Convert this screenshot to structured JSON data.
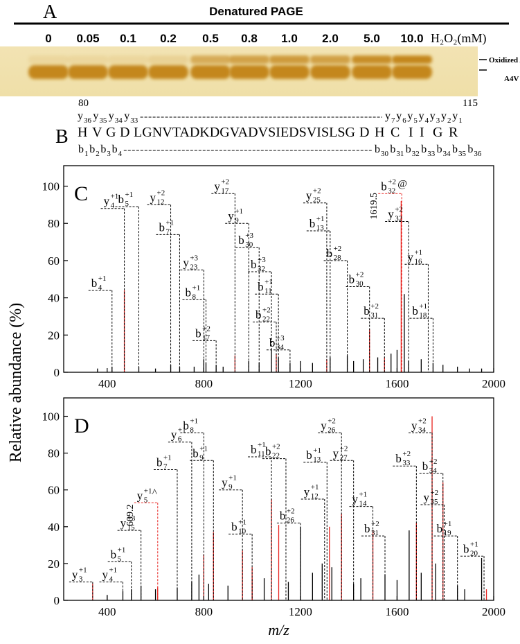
{
  "gel": {
    "label": "A",
    "title": "Denatured PAGE",
    "lanes": [
      "0",
      "0.05",
      "0.1",
      "0.2",
      "0.5",
      "0.8",
      "1.0",
      "2.0",
      "5.0",
      "10.0"
    ],
    "unit": "H₂O₂(mM)",
    "bands": [
      "Oxidized A4V",
      "A4V"
    ]
  },
  "sequence": {
    "label": "B",
    "start": 80,
    "end": 115,
    "residues": [
      "H",
      "V",
      "G",
      "D",
      "LGNVTADKDGVADVSIEDSVISLSG",
      "D",
      "H",
      {
        "text": "C",
        "color": "#e8231f"
      },
      "I",
      "I",
      "G",
      "R"
    ],
    "y_ions": {
      "ion": "y",
      "left": [
        "36",
        "35",
        "34",
        "33"
      ],
      "right": [
        "7",
        "6",
        {
          "index": "5",
          "color": "#e8231f"
        },
        "4",
        "3",
        "2",
        "1"
      ]
    },
    "b_ions": {
      "ion": "b",
      "left": [
        "1",
        "2",
        "3",
        "4"
      ],
      "right": [
        "30",
        "31",
        {
          "index": "32",
          "color": "#e8231f"
        },
        "33",
        "34",
        "35",
        "36"
      ]
    }
  },
  "chart_data": [
    {
      "type": "spectrum",
      "label": "C",
      "ylabel": "Relative abundance (%)",
      "xlim": [
        220,
        2000
      ],
      "ylim": [
        0,
        111
      ],
      "xticks": [
        400,
        800,
        1200,
        1600,
        2000
      ],
      "yticks": [
        0,
        20,
        40,
        60,
        80,
        100
      ],
      "series": [
        {
          "color": "#e8231f",
          "x": [
            471,
            929,
            1100,
            1309,
            1486,
            1548,
            1617
          ],
          "values": [
            44,
            9,
            10,
            7,
            23,
            8,
            92
          ]
        },
        {
          "color": "#000000",
          "x": [
            360,
            420,
            531,
            600,
            663,
            700,
            760,
            800,
            809,
            851,
            880,
            986,
            1029,
            1080,
            1109,
            1157,
            1200,
            1250,
            1323,
            1394,
            1420,
            1460,
            1520,
            1575,
            1600,
            1630,
            1648,
            1700,
            1749,
            1790,
            1850,
            1900,
            1950
          ],
          "values": [
            2,
            3,
            3,
            2,
            4,
            3,
            3,
            7,
            5,
            4,
            3,
            6,
            5,
            12,
            8,
            5,
            6,
            5,
            8,
            9,
            6,
            7,
            8,
            10,
            12,
            42,
            6,
            7,
            5,
            4,
            3,
            2,
            2
          ]
        }
      ],
      "annotations": [
        {
          "ion": "b",
          "index": "4",
          "charge": "+1",
          "x": 420,
          "y": 44
        },
        {
          "ion": "y",
          "index": "4",
          "charge": "+1",
          "x": 471,
          "y": 88
        },
        {
          "ion": "b",
          "index": "5",
          "charge": "+1",
          "x": 531,
          "y": 89
        },
        {
          "ion": "y",
          "index": "12",
          "charge": "+2",
          "x": 663,
          "y": 90
        },
        {
          "ion": "b",
          "index": "7",
          "charge": "+1",
          "x": 700,
          "y": 74
        },
        {
          "ion": "y",
          "index": "23",
          "charge": "+3",
          "x": 800,
          "y": 55
        },
        {
          "ion": "b",
          "index": "8",
          "charge": "+1",
          "x": 809,
          "y": 39
        },
        {
          "ion": "b",
          "index": "17",
          "charge": "+2",
          "x": 851,
          "y": 17
        },
        {
          "ion": "y",
          "index": "17",
          "charge": "+2",
          "x": 929,
          "y": 96
        },
        {
          "ion": "y",
          "index": "9",
          "charge": "+1",
          "x": 986,
          "y": 80
        },
        {
          "ion": "b",
          "index": "30",
          "charge": "+3",
          "x": 1029,
          "y": 67
        },
        {
          "ion": "b",
          "index": "32",
          "charge": "+3",
          "x": 1080,
          "y": 54
        },
        {
          "ion": "b",
          "index": "11",
          "charge": "+1",
          "x": 1109,
          "y": 42
        },
        {
          "ion": "b",
          "index": "22",
          "charge": "+2",
          "x": 1100,
          "y": 27
        },
        {
          "ion": "b",
          "index": "34",
          "charge": "+3",
          "x": 1157,
          "y": 12
        },
        {
          "ion": "y",
          "index": "25",
          "charge": "+2",
          "x": 1309,
          "y": 91
        },
        {
          "ion": "b",
          "index": "13",
          "charge": "+1",
          "x": 1323,
          "y": 76
        },
        {
          "ion": "b",
          "index": "28",
          "charge": "+2",
          "x": 1394,
          "y": 60
        },
        {
          "ion": "b",
          "index": "30",
          "charge": "+2",
          "x": 1486,
          "y": 46
        },
        {
          "ion": "b",
          "index": "31",
          "charge": "+2",
          "x": 1548,
          "y": 29
        },
        {
          "ion": "b",
          "index": "32",
          "charge": "+2",
          "suffix": "@",
          "x": 1619.5,
          "y": 96,
          "color": "#e8231f",
          "print_x": true
        },
        {
          "ion": "y",
          "index": "32",
          "charge": "+2",
          "x": 1648,
          "y": 81
        },
        {
          "ion": "y",
          "index": "16",
          "charge": "+1",
          "x": 1729,
          "y": 58
        },
        {
          "ion": "b",
          "index": "18",
          "charge": "+1",
          "x": 1749,
          "y": 29
        }
      ]
    },
    {
      "type": "spectrum",
      "label": "D",
      "xlabel": "m/z",
      "xlim": [
        220,
        2000
      ],
      "ylim": [
        0,
        110
      ],
      "xticks": [
        400,
        800,
        1200,
        1600,
        2000
      ],
      "yticks": [
        0,
        20,
        40,
        60,
        80,
        100
      ],
      "series": [
        {
          "color": "#e8231f",
          "x": [
            340,
            609,
            800,
            840,
            960,
            1000,
            1080,
            1110,
            1320,
            1370,
            1500,
            1680,
            1745,
            1790,
            1970
          ],
          "values": [
            9,
            7,
            25,
            37,
            27,
            18,
            55,
            41,
            40,
            47,
            38,
            42,
            100,
            64,
            6
          ]
        },
        {
          "color": "#000000",
          "x": [
            400,
            465,
            500,
            540,
            600,
            690,
            750,
            780,
            820,
            900,
            1000,
            1050,
            1150,
            1200,
            1250,
            1290,
            1330,
            1420,
            1450,
            1550,
            1600,
            1650,
            1700,
            1760,
            1850,
            1880,
            1950
          ],
          "values": [
            3,
            5,
            6,
            8,
            6,
            7,
            10,
            14,
            9,
            8,
            12,
            12,
            10,
            40,
            15,
            20,
            18,
            9,
            12,
            14,
            11,
            38,
            15,
            20,
            8,
            6,
            23
          ]
        }
      ],
      "annotations": [
        {
          "ion": "y",
          "index": "3",
          "charge": "+1",
          "x": 340,
          "y": 10
        },
        {
          "ion": "y",
          "index": "4",
          "charge": "+1",
          "x": 465,
          "y": 10
        },
        {
          "ion": "b",
          "index": "5",
          "charge": "+1",
          "x": 500,
          "y": 21
        },
        {
          "ion": "y",
          "index": "15",
          "charge": "+3",
          "x": 540,
          "y": 38
        },
        {
          "ion": "y",
          "index": "5",
          "charge": "+1",
          "suffix": "^",
          "x": 609.2,
          "y": 53,
          "color": "#e8231f",
          "print_x": true
        },
        {
          "ion": "b",
          "index": "7",
          "charge": "+1",
          "x": 690,
          "y": 71
        },
        {
          "ion": "y",
          "index": "6",
          "charge": "+1",
          "x": 750,
          "y": 86
        },
        {
          "ion": "b",
          "index": "8",
          "charge": "+1",
          "x": 800,
          "y": 91
        },
        {
          "ion": "b",
          "index": "9",
          "charge": "+1",
          "x": 840,
          "y": 76
        },
        {
          "ion": "y",
          "index": "9",
          "charge": "+1",
          "x": 960,
          "y": 60
        },
        {
          "ion": "b",
          "index": "10",
          "charge": "+1",
          "x": 1000,
          "y": 36
        },
        {
          "ion": "b",
          "index": "11",
          "charge": "+1",
          "x": 1080,
          "y": 78
        },
        {
          "ion": "b",
          "index": "22",
          "charge": "+2",
          "x": 1140,
          "y": 77
        },
        {
          "ion": "b",
          "index": "26",
          "charge": "+2",
          "x": 1200,
          "y": 42
        },
        {
          "ion": "y",
          "index": "12",
          "charge": "+1",
          "x": 1300,
          "y": 55
        },
        {
          "ion": "b",
          "index": "13",
          "charge": "+1",
          "x": 1310,
          "y": 75
        },
        {
          "ion": "y",
          "index": "26",
          "charge": "+2",
          "x": 1370,
          "y": 91
        },
        {
          "ion": "y",
          "index": "27",
          "charge": "+2",
          "x": 1420,
          "y": 76
        },
        {
          "ion": "y",
          "index": "14",
          "charge": "+1",
          "x": 1500,
          "y": 51
        },
        {
          "ion": "b",
          "index": "31",
          "charge": "+2",
          "x": 1550,
          "y": 35
        },
        {
          "ion": "b",
          "index": "33",
          "charge": "+2",
          "x": 1680,
          "y": 73
        },
        {
          "ion": "y",
          "index": "34",
          "charge": "+2",
          "x": 1745,
          "y": 91
        },
        {
          "ion": "b",
          "index": "34",
          "charge": "+2",
          "x": 1790,
          "y": 69
        },
        {
          "ion": "y",
          "index": "35",
          "charge": "+2",
          "x": 1795,
          "y": 52
        },
        {
          "ion": "b",
          "index": "19",
          "charge": "+1",
          "x": 1850,
          "y": 35
        },
        {
          "ion": "b",
          "index": "20",
          "charge": "+1",
          "x": 1960,
          "y": 24
        }
      ]
    }
  ]
}
